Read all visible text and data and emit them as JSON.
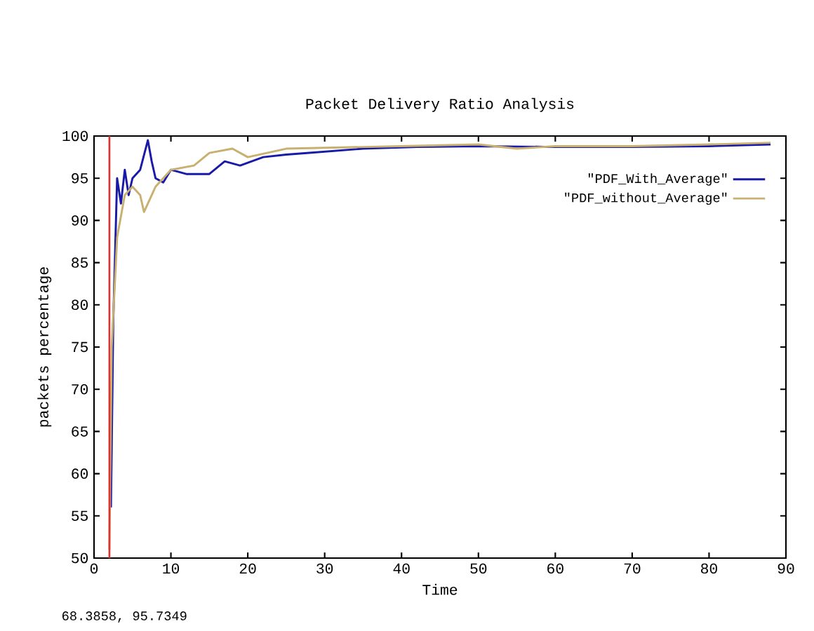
{
  "chart_data": {
    "type": "line",
    "title": "Packet Delivery Ratio Analysis",
    "xlabel": "Time",
    "ylabel": "packets percentage",
    "xlim": [
      0,
      90
    ],
    "ylim": [
      50,
      100
    ],
    "xticks": [
      0,
      10,
      20,
      30,
      40,
      50,
      60,
      70,
      80,
      90
    ],
    "yticks": [
      50,
      55,
      60,
      65,
      70,
      75,
      80,
      85,
      90,
      95,
      100
    ],
    "legend": "top right",
    "grid": false,
    "marker": "none",
    "line_style": "solid",
    "series": [
      {
        "name": "\"PDF_With_Average\"",
        "color": "#1a1aa8",
        "x": [
          2.2,
          2.5,
          3,
          3.5,
          4,
          4.5,
          5,
          6,
          7,
          7.5,
          8,
          9,
          10,
          12,
          15,
          17,
          19,
          22,
          25,
          28,
          35,
          42,
          50,
          60,
          70,
          80,
          88
        ],
        "values": [
          56,
          78,
          95,
          92,
          96,
          93,
          95,
          96,
          99.5,
          97,
          95,
          94.5,
          96,
          95.5,
          95.5,
          97,
          96.5,
          97.5,
          97.8,
          98,
          98.5,
          98.7,
          98.8,
          98.7,
          98.7,
          98.8,
          99
        ]
      },
      {
        "name": "\"PDF_without_Average\"",
        "color": "#c8b070",
        "x": [
          2,
          2.3,
          3,
          4,
          5,
          6,
          6.5,
          7,
          8,
          10,
          13,
          15,
          18,
          20,
          25,
          30,
          40,
          50,
          55,
          60,
          70,
          80,
          88
        ],
        "values": [
          51,
          75,
          88,
          93,
          94,
          93,
          91,
          92,
          94,
          96,
          96.5,
          98,
          98.5,
          97.5,
          98.5,
          98.6,
          98.8,
          99,
          98.5,
          98.8,
          98.8,
          99,
          99.2
        ]
      }
    ],
    "ref_lines": [
      {
        "axis": "x",
        "value": 2,
        "color": "#e03030"
      }
    ],
    "annotations": [
      "68.3858,  95.7349"
    ]
  }
}
